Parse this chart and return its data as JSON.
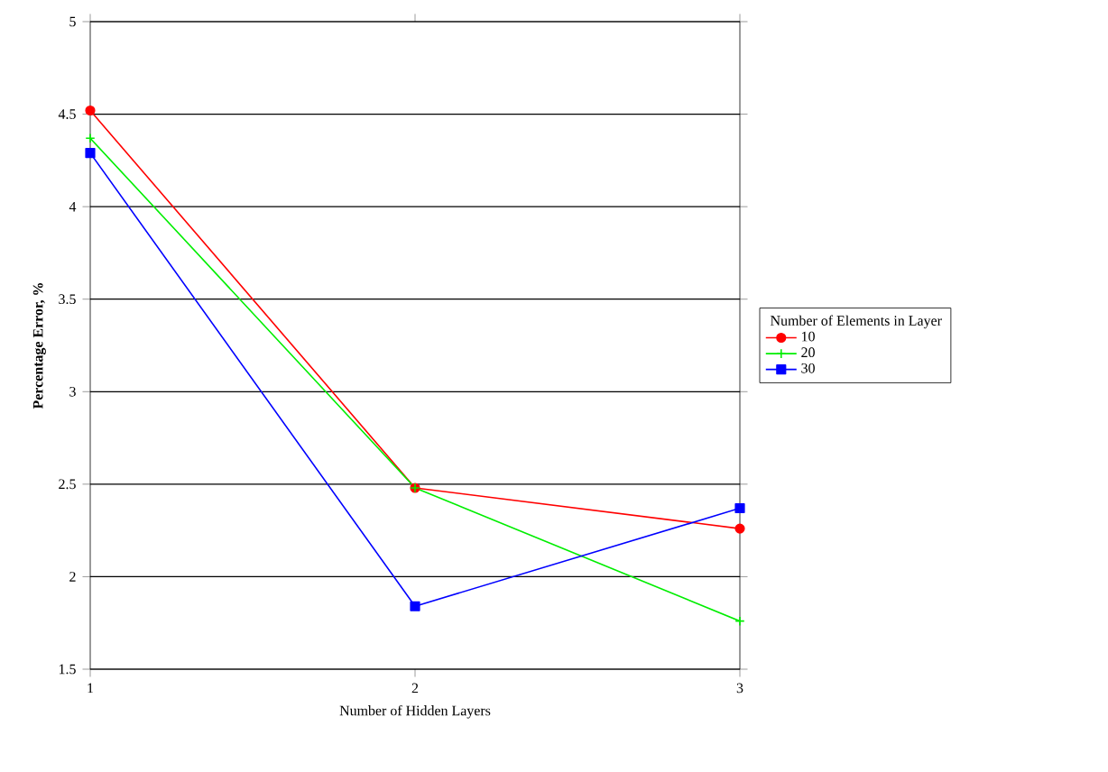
{
  "chart_data": {
    "type": "line",
    "xlabel": "Number of Hidden Layers",
    "ylabel": "Percentage Error, %",
    "legend_title": "Number of Elements in Layer",
    "x": [
      1,
      2,
      3
    ],
    "xlim": [
      1,
      3
    ],
    "xticks": [
      1,
      2,
      3
    ],
    "ylim": [
      1.5,
      5
    ],
    "yticks": [
      1.5,
      2,
      2.5,
      3,
      3.5,
      4,
      4.5,
      5
    ],
    "grid": "y",
    "legend": "right",
    "series": [
      {
        "name": "10",
        "color": "#ff0000",
        "marker": "circle",
        "values": [
          4.52,
          2.48,
          2.26
        ]
      },
      {
        "name": "20",
        "color": "#00ee00",
        "marker": "cross",
        "values": [
          4.37,
          2.48,
          1.76
        ]
      },
      {
        "name": "30",
        "color": "#0000ff",
        "marker": "square",
        "values": [
          4.29,
          1.84,
          2.37
        ]
      }
    ]
  }
}
